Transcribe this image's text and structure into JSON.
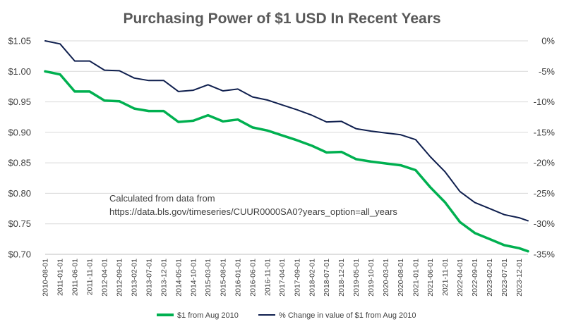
{
  "chart_data": {
    "type": "line",
    "title": "Purchasing Power of $1 USD In Recent Years",
    "note_lines": [
      "Calculated from data from",
      "https://data.bls.gov/timeseries/CUUR0000SA0?years_option=all_years"
    ],
    "x_tick_labels": [
      "2010-08-01",
      "2011-01-01",
      "2011-06-01",
      "2011-11-01",
      "2012-04-01",
      "2012-09-01",
      "2013-02-01",
      "2013-07-01",
      "2013-12-01",
      "2014-05-01",
      "2014-10-01",
      "2015-03-01",
      "2015-08-01",
      "2016-01-01",
      "2016-06-01",
      "2016-11-01",
      "2017-04-01",
      "2017-09-01",
      "2018-02-01",
      "2018-07-01",
      "2018-12-01",
      "2019-05-01",
      "2019-10-01",
      "2020-03-01",
      "2020-08-01",
      "2021-01-01",
      "2021-06-01",
      "2021-11-01",
      "2022-04-01",
      "2022-09-01",
      "2023-02-01",
      "2023-07-01",
      "2023-12-01"
    ],
    "y_left_ticks": [
      "$0.70",
      "$0.75",
      "$0.80",
      "$0.85",
      "$0.90",
      "$0.95",
      "$1.00",
      "$1.05"
    ],
    "y_left_values": [
      0.7,
      0.75,
      0.8,
      0.85,
      0.9,
      0.95,
      1.0,
      1.05
    ],
    "y_right_ticks": [
      "-35%",
      "-30%",
      "-25%",
      "-20%",
      "-15%",
      "-10%",
      "-5%",
      "0%"
    ],
    "y_right_values": [
      -35,
      -30,
      -25,
      -20,
      -15,
      -10,
      -5,
      0
    ],
    "ylim_left": [
      0.7,
      1.05
    ],
    "ylim_right": [
      -35,
      0
    ],
    "grid": true,
    "legend_position": "bottom",
    "series": [
      {
        "name": "$1 from Aug 2010",
        "axis": "left",
        "color": "#00b050",
        "points": [
          [
            "2010-08-01",
            1.0
          ],
          [
            "2011-01-01",
            0.995
          ],
          [
            "2011-06-01",
            0.967
          ],
          [
            "2011-11-01",
            0.967
          ],
          [
            "2012-04-01",
            0.952
          ],
          [
            "2012-09-01",
            0.951
          ],
          [
            "2013-02-01",
            0.939
          ],
          [
            "2013-07-01",
            0.935
          ],
          [
            "2013-12-01",
            0.935
          ],
          [
            "2014-05-01",
            0.917
          ],
          [
            "2014-10-01",
            0.919
          ],
          [
            "2015-03-01",
            0.928
          ],
          [
            "2015-08-01",
            0.918
          ],
          [
            "2016-01-01",
            0.921
          ],
          [
            "2016-06-01",
            0.908
          ],
          [
            "2016-11-01",
            0.903
          ],
          [
            "2017-04-01",
            0.895
          ],
          [
            "2017-09-01",
            0.887
          ],
          [
            "2018-02-01",
            0.878
          ],
          [
            "2018-07-01",
            0.867
          ],
          [
            "2018-12-01",
            0.868
          ],
          [
            "2019-05-01",
            0.856
          ],
          [
            "2019-10-01",
            0.852
          ],
          [
            "2020-03-01",
            0.849
          ],
          [
            "2020-08-01",
            0.846
          ],
          [
            "2021-01-01",
            0.838
          ],
          [
            "2021-06-01",
            0.81
          ],
          [
            "2021-11-01",
            0.785
          ],
          [
            "2022-04-01",
            0.753
          ],
          [
            "2022-09-01",
            0.735
          ],
          [
            "2023-02-01",
            0.725
          ],
          [
            "2023-07-01",
            0.715
          ],
          [
            "2023-12-01",
            0.71
          ],
          [
            "2024-03-01",
            0.705
          ]
        ]
      },
      {
        "name": "% Change in value of $1 from Aug 2010",
        "axis": "right",
        "color": "#0f1f4e",
        "points": [
          [
            "2010-08-01",
            0.0
          ],
          [
            "2011-01-01",
            -0.5
          ],
          [
            "2011-06-01",
            -3.3
          ],
          [
            "2011-11-01",
            -3.3
          ],
          [
            "2012-04-01",
            -4.8
          ],
          [
            "2012-09-01",
            -4.9
          ],
          [
            "2013-02-01",
            -6.1
          ],
          [
            "2013-07-01",
            -6.5
          ],
          [
            "2013-12-01",
            -6.5
          ],
          [
            "2014-05-01",
            -8.3
          ],
          [
            "2014-10-01",
            -8.1
          ],
          [
            "2015-03-01",
            -7.2
          ],
          [
            "2015-08-01",
            -8.2
          ],
          [
            "2016-01-01",
            -7.9
          ],
          [
            "2016-06-01",
            -9.2
          ],
          [
            "2016-11-01",
            -9.7
          ],
          [
            "2017-04-01",
            -10.5
          ],
          [
            "2017-09-01",
            -11.3
          ],
          [
            "2018-02-01",
            -12.2
          ],
          [
            "2018-07-01",
            -13.3
          ],
          [
            "2018-12-01",
            -13.2
          ],
          [
            "2019-05-01",
            -14.4
          ],
          [
            "2019-10-01",
            -14.8
          ],
          [
            "2020-03-01",
            -15.1
          ],
          [
            "2020-08-01",
            -15.4
          ],
          [
            "2021-01-01",
            -16.2
          ],
          [
            "2021-06-01",
            -19.0
          ],
          [
            "2021-11-01",
            -21.5
          ],
          [
            "2022-04-01",
            -24.7
          ],
          [
            "2022-09-01",
            -26.5
          ],
          [
            "2023-02-01",
            -27.5
          ],
          [
            "2023-07-01",
            -28.5
          ],
          [
            "2023-12-01",
            -29.0
          ],
          [
            "2024-03-01",
            -29.5
          ]
        ]
      }
    ]
  }
}
